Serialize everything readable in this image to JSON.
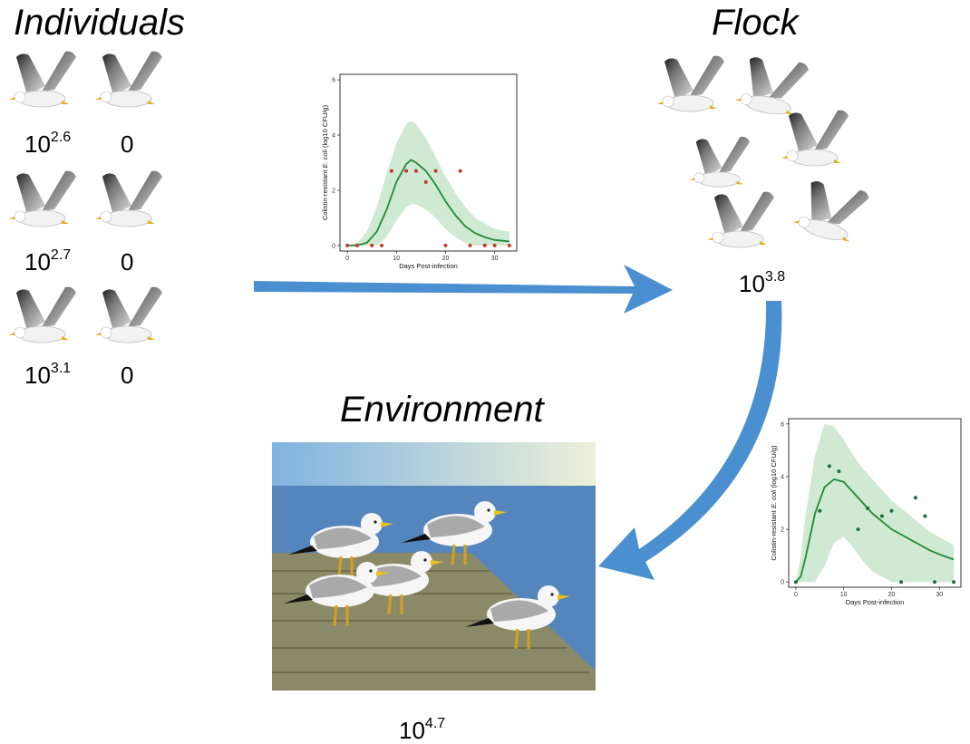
{
  "individuals": {
    "title": "Individuals",
    "labels": [
      {
        "base": "10",
        "exponent": "2.6"
      },
      {
        "base": "0"
      },
      {
        "base": "10",
        "exponent": "2.7"
      },
      {
        "base": "0"
      },
      {
        "base": "10",
        "exponent": "3.1"
      },
      {
        "base": "0"
      }
    ]
  },
  "flock": {
    "title": "Flock",
    "label": {
      "base": "10",
      "exponent": "3.8"
    }
  },
  "environment": {
    "title": "Environment",
    "label": {
      "base": "10",
      "exponent": "4.7"
    }
  },
  "chart_data": [
    {
      "type": "scatter-line",
      "xlabel": "Days Post-infection",
      "ylabel": [
        "Colistin-resistant ",
        "E. coli",
        " (log10 CFU/g)"
      ],
      "xlim": [
        -1.5,
        34.5
      ],
      "ylim": [
        -0.2,
        6.2
      ],
      "xticks": [
        0,
        10,
        20,
        30
      ],
      "yticks": [
        0,
        2,
        4,
        6
      ],
      "color": "#1f8a3c",
      "point_color": "#c0392b",
      "band_color": "#cfe9d2",
      "x": [
        0,
        2,
        5,
        7,
        9,
        12,
        14,
        16,
        18,
        20,
        23,
        25,
        28,
        30,
        33
      ],
      "values": [
        0,
        0,
        0,
        0,
        2.7,
        2.7,
        2.7,
        2.3,
        2.7,
        0,
        2.7,
        0,
        0,
        0,
        0
      ],
      "curve_x": [
        0,
        2,
        4,
        6,
        8,
        10,
        12,
        13,
        14,
        16,
        18,
        20,
        22,
        24,
        26,
        28,
        30,
        33
      ],
      "curve": [
        0,
        0,
        0.1,
        0.5,
        1.3,
        2.3,
        2.95,
        3.1,
        3.0,
        2.7,
        2.2,
        1.6,
        1.1,
        0.7,
        0.45,
        0.3,
        0.2,
        0.15
      ],
      "band_upper": [
        0,
        0.1,
        0.5,
        1.4,
        2.6,
        3.7,
        4.4,
        4.5,
        4.4,
        3.9,
        3.2,
        2.5,
        1.9,
        1.4,
        1.0,
        0.8,
        0.6,
        0.5
      ],
      "band_lower": [
        0,
        0,
        0,
        0,
        0.3,
        0.9,
        1.4,
        1.5,
        1.5,
        1.3,
        1.0,
        0.6,
        0.3,
        0.1,
        0,
        0,
        0,
        0
      ]
    },
    {
      "type": "scatter-line",
      "xlabel": "Days Post-infection",
      "ylabel": [
        "Colistin-resistant ",
        "E. coli",
        " (log10 CFU/g)"
      ],
      "xlim": [
        -1.5,
        34.5
      ],
      "ylim": [
        -0.2,
        6.2
      ],
      "xticks": [
        0,
        10,
        20,
        30
      ],
      "yticks": [
        0,
        2,
        4,
        6
      ],
      "color": "#1f8a3c",
      "point_color": "#1f6b3a",
      "band_color": "#cfe9d2",
      "x": [
        0,
        5,
        7,
        9,
        13,
        15,
        18,
        20,
        22,
        25,
        27,
        29,
        33
      ],
      "values": [
        0,
        2.7,
        4.4,
        4.2,
        2.0,
        2.8,
        2.5,
        2.7,
        0,
        3.2,
        2.5,
        0,
        0
      ],
      "curve_x": [
        0,
        1,
        2,
        4,
        6,
        8,
        10,
        12,
        14,
        16,
        18,
        20,
        22,
        24,
        26,
        28,
        30,
        33
      ],
      "curve": [
        0,
        0.2,
        0.9,
        2.6,
        3.6,
        3.9,
        3.8,
        3.4,
        3.0,
        2.6,
        2.3,
        2.0,
        1.8,
        1.6,
        1.4,
        1.2,
        1.05,
        0.85
      ],
      "band_upper": [
        0,
        0.9,
        2.5,
        4.8,
        6.0,
        5.9,
        5.4,
        4.8,
        4.3,
        3.9,
        3.5,
        3.1,
        2.8,
        2.5,
        2.2,
        1.9,
        1.7,
        1.4
      ],
      "band_lower": [
        0,
        0,
        0,
        0,
        0.6,
        1.5,
        1.7,
        1.3,
        0.8,
        0.4,
        0.2,
        0,
        0,
        0,
        0,
        0,
        0,
        0
      ]
    }
  ]
}
